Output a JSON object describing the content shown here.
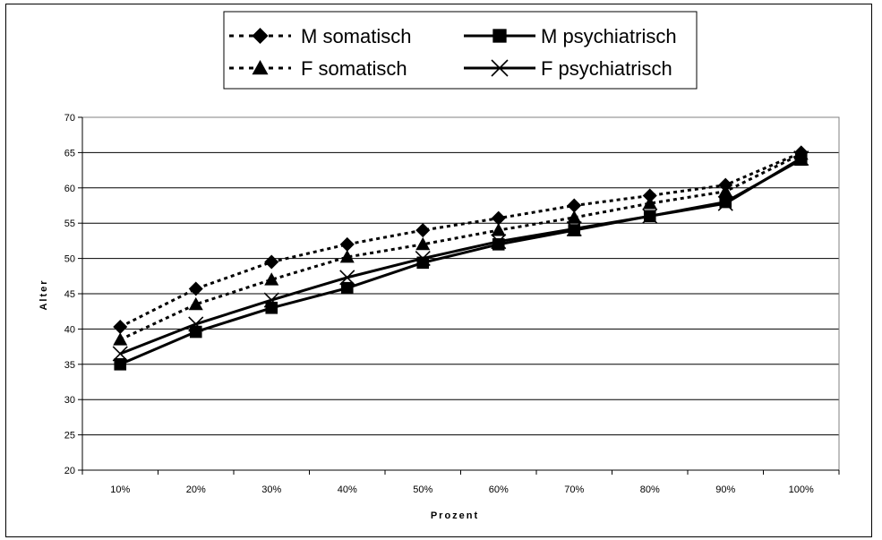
{
  "chart_data": {
    "type": "line",
    "title": "",
    "xlabel": "Prozent",
    "ylabel": "Alter",
    "categories": [
      "10%",
      "20%",
      "30%",
      "40%",
      "50%",
      "60%",
      "70%",
      "80%",
      "90%",
      "100%"
    ],
    "ylim": [
      20,
      70
    ],
    "yticks": [
      "20",
      "25",
      "30",
      "35",
      "40",
      "45",
      "50",
      "55",
      "60",
      "65",
      "70"
    ],
    "grid": "horizontal",
    "legend_position": "top",
    "series": [
      {
        "name": "M somatisch",
        "style": "dashed",
        "marker": "diamond",
        "color": "#000000",
        "values": [
          40.3,
          45.7,
          49.5,
          52.0,
          54.0,
          55.7,
          57.5,
          58.9,
          60.4,
          65.0
        ]
      },
      {
        "name": "M psychiatrisch",
        "style": "solid",
        "marker": "square",
        "color": "#000000",
        "values": [
          35.0,
          39.6,
          43.0,
          45.8,
          49.4,
          52.0,
          54.0,
          56.0,
          58.0,
          64.0
        ]
      },
      {
        "name": "F somatisch",
        "style": "dashed",
        "marker": "triangle",
        "color": "#000000",
        "values": [
          38.5,
          43.5,
          47.0,
          50.2,
          52.0,
          54.0,
          55.8,
          57.8,
          59.5,
          64.8
        ]
      },
      {
        "name": "F psychiatrisch",
        "style": "solid",
        "marker": "x",
        "color": "#000000",
        "values": [
          36.5,
          40.7,
          44.1,
          47.3,
          50.0,
          52.4,
          54.2,
          56.0,
          57.8,
          64.2
        ]
      }
    ]
  }
}
